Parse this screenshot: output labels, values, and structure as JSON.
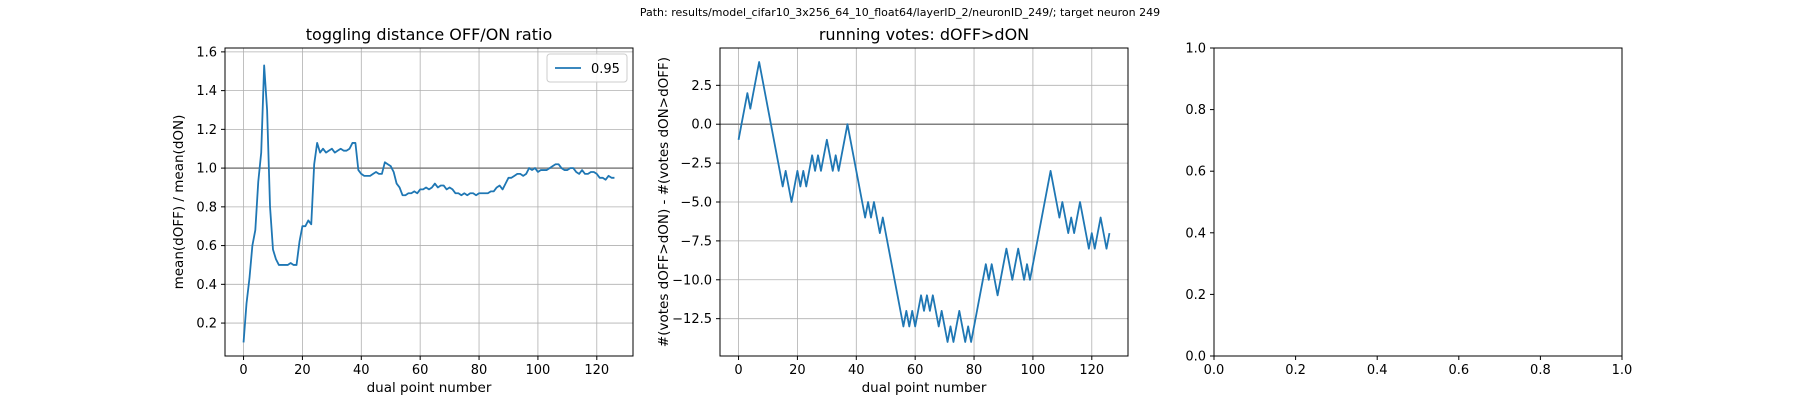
{
  "figure": {
    "suptitle": "Path: results/model_cifar10_3x256_64_10_float64/layerID_2/neuronID_249/; target neuron 249"
  },
  "colors": {
    "line": "#1f77b4",
    "refline": "#808080",
    "grid": "#b0b0b0",
    "axes": "#000000"
  },
  "chart_data": [
    {
      "type": "line",
      "title": "toggling distance OFF/ON ratio",
      "xlabel": "dual point number",
      "ylabel": "mean(dOFF) / mean(dON)",
      "xlim": [
        -6.3,
        132.3
      ],
      "ylim": [
        0.03,
        1.62
      ],
      "xticks": [
        0,
        20,
        40,
        60,
        80,
        100,
        120
      ],
      "yticks": [
        0.2,
        0.4,
        0.6,
        0.8,
        1.0,
        1.2,
        1.4,
        1.6
      ],
      "ytick_labels": [
        "0.2",
        "0.4",
        "0.6",
        "0.8",
        "1.0",
        "1.2",
        "1.4",
        "1.6"
      ],
      "grid": true,
      "legend": {
        "position": "top-right",
        "entries": [
          "0.95"
        ]
      },
      "hline": 1.0,
      "series": [
        {
          "name": "0.95",
          "x": [
            0,
            1,
            2,
            3,
            4,
            5,
            6,
            7,
            8,
            9,
            10,
            11,
            12,
            13,
            14,
            15,
            16,
            17,
            18,
            19,
            20,
            21,
            22,
            23,
            24,
            25,
            26,
            27,
            28,
            29,
            30,
            31,
            32,
            33,
            34,
            35,
            36,
            37,
            38,
            39,
            40,
            41,
            42,
            43,
            44,
            45,
            46,
            47,
            48,
            49,
            50,
            51,
            52,
            53,
            54,
            55,
            56,
            57,
            58,
            59,
            60,
            61,
            62,
            63,
            64,
            65,
            66,
            67,
            68,
            69,
            70,
            71,
            72,
            73,
            74,
            75,
            76,
            77,
            78,
            79,
            80,
            81,
            82,
            83,
            84,
            85,
            86,
            87,
            88,
            89,
            90,
            91,
            92,
            93,
            94,
            95,
            96,
            97,
            98,
            99,
            100,
            101,
            102,
            103,
            104,
            105,
            106,
            107,
            108,
            109,
            110,
            111,
            112,
            113,
            114,
            115,
            116,
            117,
            118,
            119,
            120,
            121,
            122,
            123,
            124,
            125,
            126
          ],
          "y": [
            0.1,
            0.3,
            0.43,
            0.6,
            0.68,
            0.93,
            1.08,
            1.53,
            1.3,
            0.8,
            0.58,
            0.53,
            0.5,
            0.5,
            0.5,
            0.5,
            0.51,
            0.5,
            0.5,
            0.62,
            0.7,
            0.7,
            0.73,
            0.71,
            1.02,
            1.13,
            1.08,
            1.1,
            1.08,
            1.09,
            1.1,
            1.08,
            1.09,
            1.1,
            1.09,
            1.09,
            1.1,
            1.13,
            1.13,
            0.99,
            0.97,
            0.96,
            0.96,
            0.96,
            0.97,
            0.98,
            0.97,
            0.97,
            1.03,
            1.02,
            1.01,
            0.98,
            0.92,
            0.9,
            0.86,
            0.86,
            0.87,
            0.87,
            0.88,
            0.87,
            0.89,
            0.89,
            0.9,
            0.89,
            0.9,
            0.92,
            0.9,
            0.91,
            0.91,
            0.89,
            0.9,
            0.89,
            0.87,
            0.87,
            0.86,
            0.87,
            0.86,
            0.87,
            0.87,
            0.86,
            0.87,
            0.87,
            0.87,
            0.87,
            0.88,
            0.88,
            0.9,
            0.91,
            0.89,
            0.92,
            0.95,
            0.95,
            0.96,
            0.97,
            0.97,
            0.96,
            0.97,
            1.0,
            0.99,
            1.0,
            0.98,
            0.99,
            0.99,
            0.99,
            1.0,
            1.01,
            1.02,
            1.02,
            1.0,
            0.99,
            0.99,
            1.0,
            1.0,
            0.98,
            0.97,
            0.99,
            0.97,
            0.97,
            0.98,
            0.98,
            0.97,
            0.95,
            0.95,
            0.94,
            0.96,
            0.95,
            0.95
          ]
        }
      ]
    },
    {
      "type": "line",
      "title": "running votes: dOFF>dON",
      "xlabel": "dual point number",
      "ylabel": "#(votes dOFF>dON) - #(votes dON>dOFF)",
      "xlim": [
        -6.3,
        132.3
      ],
      "ylim": [
        -14.9,
        4.9
      ],
      "xticks": [
        0,
        20,
        40,
        60,
        80,
        100,
        120
      ],
      "yticks": [
        2.5,
        0.0,
        -2.5,
        -5.0,
        -7.5,
        -10.0,
        -12.5
      ],
      "ytick_labels": [
        "2.5",
        "0.0",
        "−2.5",
        "−5.0",
        "−7.5",
        "−10.0",
        "−12.5"
      ],
      "grid": true,
      "hline": 0,
      "series": [
        {
          "x": [
            0,
            1,
            2,
            3,
            4,
            5,
            6,
            7,
            8,
            9,
            10,
            11,
            12,
            13,
            14,
            15,
            16,
            17,
            18,
            19,
            20,
            21,
            22,
            23,
            24,
            25,
            26,
            27,
            28,
            29,
            30,
            31,
            32,
            33,
            34,
            35,
            36,
            37,
            38,
            39,
            40,
            41,
            42,
            43,
            44,
            45,
            46,
            47,
            48,
            49,
            50,
            51,
            52,
            53,
            54,
            55,
            56,
            57,
            58,
            59,
            60,
            61,
            62,
            63,
            64,
            65,
            66,
            67,
            68,
            69,
            70,
            71,
            72,
            73,
            74,
            75,
            76,
            77,
            78,
            79,
            80,
            81,
            82,
            83,
            84,
            85,
            86,
            87,
            88,
            89,
            90,
            91,
            92,
            93,
            94,
            95,
            96,
            97,
            98,
            99,
            100,
            101,
            102,
            103,
            104,
            105,
            106,
            107,
            108,
            109,
            110,
            111,
            112,
            113,
            114,
            115,
            116,
            117,
            118,
            119,
            120,
            121,
            122,
            123,
            124,
            125,
            126
          ],
          "y": [
            -1,
            0,
            1,
            2,
            1,
            2,
            3,
            4,
            3,
            2,
            1,
            0,
            -1,
            -2,
            -3,
            -4,
            -3,
            -4,
            -5,
            -4,
            -3,
            -4,
            -3,
            -4,
            -3,
            -2,
            -3,
            -2,
            -3,
            -2,
            -1,
            -2,
            -3,
            -2,
            -3,
            -2,
            -1,
            0,
            -1,
            -2,
            -3,
            -4,
            -5,
            -6,
            -5,
            -6,
            -5,
            -6,
            -7,
            -6,
            -7,
            -8,
            -9,
            -10,
            -11,
            -12,
            -13,
            -12,
            -13,
            -12,
            -13,
            -12,
            -11,
            -12,
            -11,
            -12,
            -11,
            -12,
            -13,
            -12,
            -13,
            -14,
            -13,
            -14,
            -13,
            -12,
            -13,
            -14,
            -13,
            -14,
            -13,
            -12,
            -11,
            -10,
            -9,
            -10,
            -9,
            -10,
            -11,
            -10,
            -9,
            -8,
            -9,
            -10,
            -9,
            -8,
            -9,
            -10,
            -9,
            -10,
            -9,
            -8,
            -7,
            -6,
            -5,
            -4,
            -3,
            -4,
            -5,
            -6,
            -5,
            -6,
            -7,
            -6,
            -7,
            -6,
            -5,
            -6,
            -7,
            -8,
            -7,
            -8,
            -7,
            -6,
            -7,
            -8,
            -7
          ]
        }
      ]
    },
    {
      "type": "line",
      "title": "",
      "xlabel": "",
      "ylabel": "",
      "xlim": [
        0,
        1
      ],
      "ylim": [
        0,
        1
      ],
      "xticks": [
        0.0,
        0.2,
        0.4,
        0.6,
        0.8,
        1.0
      ],
      "yticks": [
        0.0,
        0.2,
        0.4,
        0.6,
        0.8,
        1.0
      ],
      "xtick_labels": [
        "0.0",
        "0.2",
        "0.4",
        "0.6",
        "0.8",
        "1.0"
      ],
      "ytick_labels": [
        "0.0",
        "0.2",
        "0.4",
        "0.6",
        "0.8",
        "1.0"
      ],
      "grid": false,
      "series": []
    }
  ]
}
